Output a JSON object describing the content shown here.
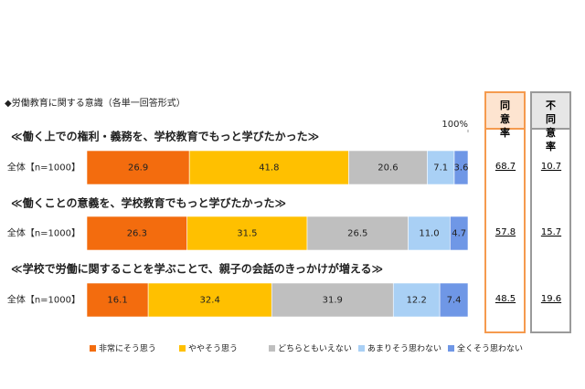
{
  "chart_data": {
    "type": "stacked-bar",
    "title": "◆労働教育に関する意識（各単一回答形式）",
    "xlim": [
      0,
      100
    ],
    "xticks": [
      {
        "value": 100,
        "label": "100%"
      }
    ],
    "categories": [
      "≪働く上での権利・義務を、学校教育でもっと学びたかった≫",
      "≪働くことの意義を、学校教育でもっと学びたかった≫",
      "≪学校で労働に関することを学ぶことで、親子の会話のきっかけが増える≫"
    ],
    "row_labels": [
      "全体【n=1000】",
      "全体【n=1000】",
      "全体【n=1000】"
    ],
    "series": [
      {
        "name": "非常にそう思う",
        "color": "#f36c0e",
        "values": [
          26.9,
          26.3,
          16.1
        ]
      },
      {
        "name": "ややそう思う",
        "color": "#ffc000",
        "values": [
          41.8,
          31.5,
          32.4
        ]
      },
      {
        "name": "どちらともいえない",
        "color": "#bfbfbf",
        "values": [
          20.6,
          26.5,
          31.9
        ]
      },
      {
        "name": "あまりそう思わない",
        "color": "#a9d0f5",
        "values": [
          7.1,
          11.0,
          12.2
        ],
        "value_labels": [
          "7.1",
          "11.0",
          "12.2"
        ]
      },
      {
        "name": "全くそう思わない",
        "color": "#6f97e6",
        "values": [
          3.6,
          4.7,
          7.4
        ]
      }
    ],
    "summary_columns": [
      {
        "name": "同意率",
        "color": "#f59a4e",
        "header_color": "#fde4d0",
        "values": [
          68.7,
          57.8,
          48.5
        ]
      },
      {
        "name": "不同意率",
        "color": "#9a9a9a",
        "header_color": "#e6e6e6",
        "values": [
          10.7,
          15.7,
          19.6
        ]
      }
    ]
  }
}
